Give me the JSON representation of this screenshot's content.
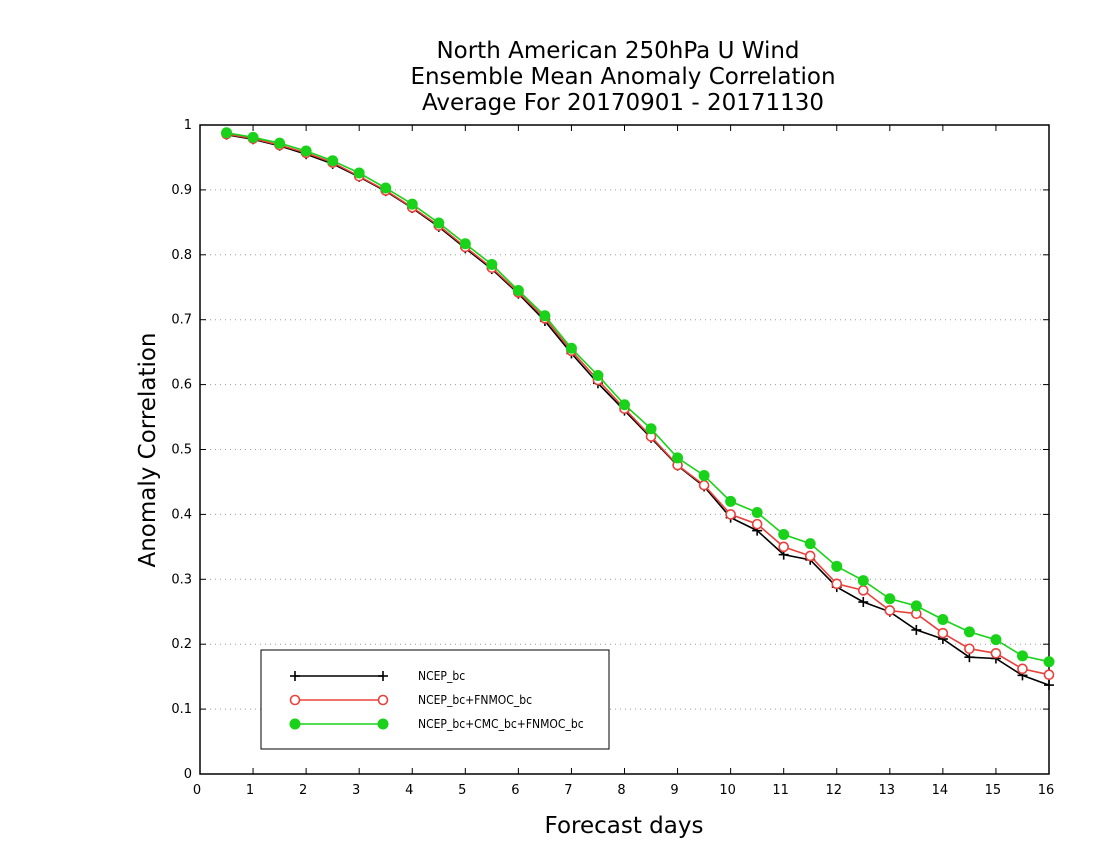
{
  "chart_data": {
    "type": "line",
    "title": [
      "North American 250hPa U Wind",
      "Ensemble Mean Anomaly Correlation",
      "Average For 20170901 - 20171130"
    ],
    "xlabel": "Forecast days",
    "ylabel": "Anomaly Correlation",
    "xlim": [
      0,
      16
    ],
    "ylim": [
      0,
      1
    ],
    "xticks": [
      0,
      1,
      2,
      3,
      4,
      5,
      6,
      7,
      8,
      9,
      10,
      11,
      12,
      13,
      14,
      15,
      16
    ],
    "yticks": [
      0,
      0.1,
      0.2,
      0.3,
      0.4,
      0.5,
      0.6,
      0.7,
      0.8,
      0.9,
      1
    ],
    "grid": "horizontal dotted",
    "legend_position": "bottom-left",
    "x": [
      0.5,
      1,
      1.5,
      2,
      2.5,
      3,
      3.5,
      4,
      4.5,
      5,
      5.5,
      6,
      6.5,
      7,
      7.5,
      8,
      8.5,
      9,
      9.5,
      10,
      10.5,
      11,
      11.5,
      12,
      12.5,
      13,
      13.5,
      14,
      14.5,
      15,
      15.5,
      16
    ],
    "series": [
      {
        "name": "NCEP_bc",
        "color": "#000000",
        "marker": "plus",
        "values": [
          0.985,
          0.978,
          0.968,
          0.955,
          0.94,
          0.92,
          0.898,
          0.872,
          0.843,
          0.81,
          0.778,
          0.74,
          0.698,
          0.648,
          0.602,
          0.56,
          0.518,
          0.475,
          0.443,
          0.395,
          0.375,
          0.338,
          0.33,
          0.288,
          0.265,
          0.25,
          0.222,
          0.208,
          0.18,
          0.178,
          0.152,
          0.137
        ]
      },
      {
        "name": "NCEP_bc+FNMOC_bc",
        "color": "#e8423c",
        "marker": "open-circle",
        "values": [
          0.986,
          0.979,
          0.969,
          0.957,
          0.942,
          0.921,
          0.899,
          0.873,
          0.845,
          0.812,
          0.78,
          0.742,
          0.702,
          0.652,
          0.607,
          0.563,
          0.52,
          0.476,
          0.445,
          0.4,
          0.385,
          0.35,
          0.336,
          0.293,
          0.283,
          0.252,
          0.247,
          0.217,
          0.193,
          0.186,
          0.162,
          0.153
        ]
      },
      {
        "name": "NCEP_bc+CMC_bc+FNMOC_bc",
        "color": "#19d219",
        "marker": "filled-circle",
        "values": [
          0.988,
          0.981,
          0.972,
          0.96,
          0.945,
          0.926,
          0.903,
          0.878,
          0.849,
          0.817,
          0.785,
          0.745,
          0.706,
          0.656,
          0.614,
          0.569,
          0.532,
          0.487,
          0.46,
          0.42,
          0.403,
          0.369,
          0.355,
          0.32,
          0.298,
          0.27,
          0.259,
          0.238,
          0.219,
          0.207,
          0.182,
          0.173
        ]
      }
    ]
  }
}
